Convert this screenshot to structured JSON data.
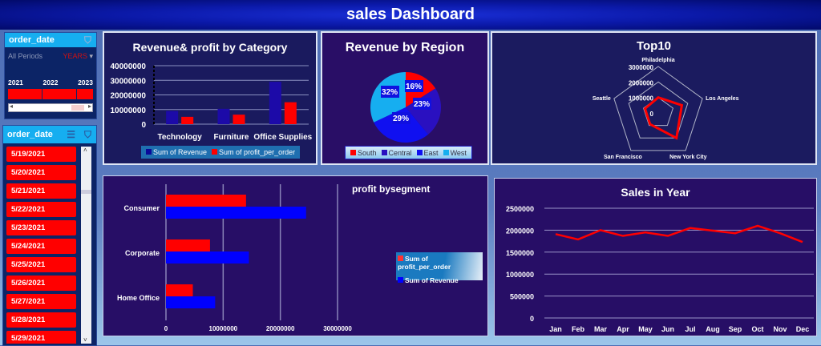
{
  "header": {
    "title": "sales Dashboard"
  },
  "timeline": {
    "field": "order_date",
    "all_periods": "All Periods",
    "level": "YEARS",
    "years": [
      "2021",
      "2022",
      "2023"
    ]
  },
  "date_slicer": {
    "field": "order_date",
    "items": [
      "5/19/2021",
      "5/20/2021",
      "5/21/2021",
      "5/22/2021",
      "5/23/2021",
      "5/24/2021",
      "5/25/2021",
      "5/26/2021",
      "5/27/2021",
      "5/28/2021",
      "5/29/2021"
    ]
  },
  "colors": {
    "red": "#ff0000",
    "navy": "#0a0a9a",
    "blue": "#0000ff",
    "cyan": "#16aef0"
  },
  "chart_data": [
    {
      "type": "bar",
      "title": "Revenue& profit by Category",
      "categories": [
        "Technology",
        "Furniture",
        "Office Supplies"
      ],
      "series": [
        {
          "name": "Sum of Revenue",
          "values": [
            9000000,
            10500000,
            29000000
          ]
        },
        {
          "name": "Sum of profit_per_order",
          "values": [
            5000000,
            6500000,
            15000000
          ]
        }
      ],
      "ylim": [
        0,
        40000000
      ],
      "yticks": [
        "0",
        "10000000",
        "20000000",
        "30000000",
        "40000000"
      ]
    },
    {
      "type": "pie",
      "title": "Revenue by Region",
      "labels": [
        "South",
        "Central",
        "East",
        "West"
      ],
      "values": [
        16,
        23,
        29,
        32
      ],
      "data_labels": [
        "16%",
        "23%",
        "29%",
        "32%"
      ]
    },
    {
      "type": "radar",
      "title": "Top10",
      "axes": [
        "Philadelphia",
        "Los Angeles",
        "New York City",
        "San Francisco",
        "Seattle"
      ],
      "values": [
        1000000,
        1600000,
        2000000,
        900000,
        900000
      ],
      "rlim": [
        0,
        3000000
      ],
      "rticks": [
        "0",
        "1000000",
        "2000000",
        "3000000"
      ]
    },
    {
      "type": "bar",
      "orientation": "horizontal",
      "title": "profit bysegment",
      "categories": [
        "Consumer",
        "Corporate",
        "Home Office"
      ],
      "series": [
        {
          "name": "Sum of profit_per_order",
          "values": [
            14000000,
            7700000,
            4700000
          ]
        },
        {
          "name": "Sum of Revenue",
          "values": [
            24500000,
            14500000,
            8600000
          ]
        }
      ],
      "xlim": [
        0,
        30000000
      ],
      "xticks": [
        "0",
        "10000000",
        "20000000",
        "30000000"
      ]
    },
    {
      "type": "line",
      "title": "Sales in Year",
      "categories": [
        "Jan",
        "Feb",
        "Mar",
        "Apr",
        "May",
        "Jun",
        "Jul",
        "Aug",
        "Sep",
        "Oct",
        "Nov",
        "Dec"
      ],
      "values": [
        1910000,
        1790000,
        2000000,
        1870000,
        1950000,
        1870000,
        2050000,
        1990000,
        1930000,
        2100000,
        1930000,
        1730000
      ],
      "ylim": [
        0,
        2500000
      ],
      "yticks": [
        "0",
        "500000",
        "1000000",
        "1500000",
        "2000000",
        "2500000"
      ]
    }
  ]
}
